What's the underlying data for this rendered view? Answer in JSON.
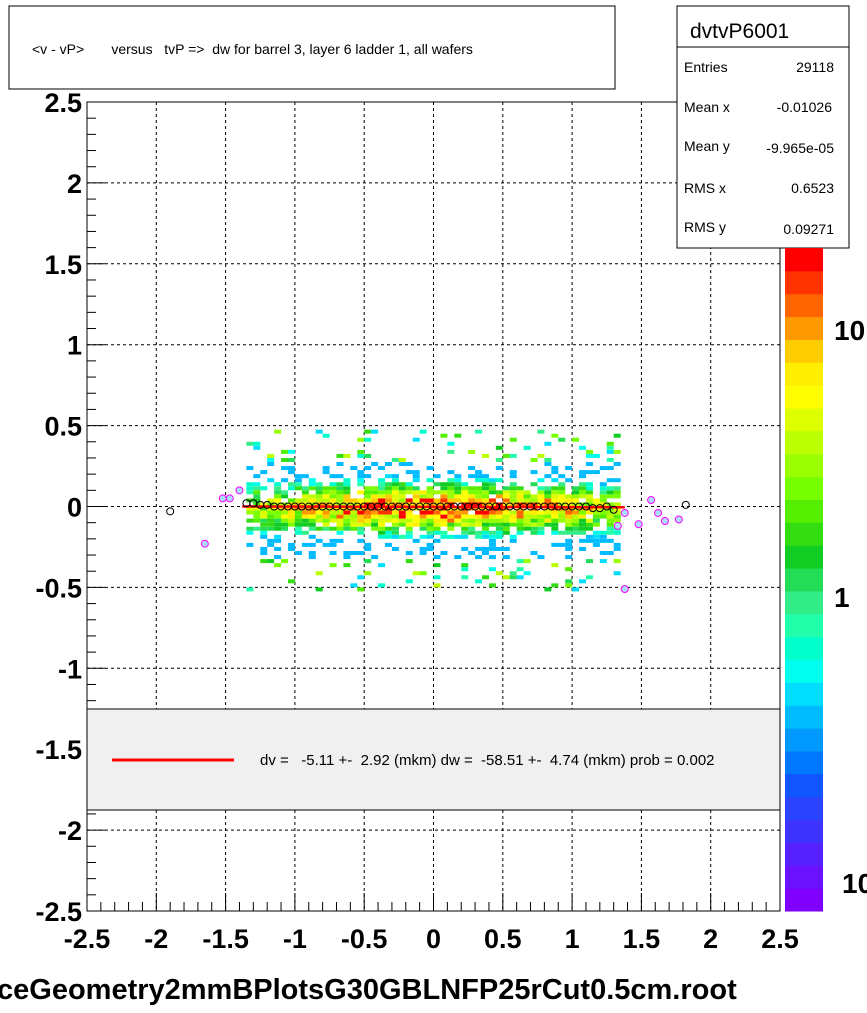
{
  "title": "<v - vP>       versus   tvP =>  dw for barrel 3, layer 6 ladder 1, all wafers",
  "footer": "ceGeometry2mmBPlotsG30GBLNFP25rCut0.5cm.root",
  "stats": {
    "name": "dvtvP6001",
    "rows": [
      {
        "label": "Entries",
        "value": "29118"
      },
      {
        "label": "Mean x",
        "value": "-0.01026"
      },
      {
        "label": "Mean y",
        "value": "-9.965e-05"
      },
      {
        "label": "RMS x",
        "value": "0.6523"
      },
      {
        "label": "RMS y",
        "value": "0.09271"
      }
    ]
  },
  "legend": {
    "text": "dv =   -5.11 +-  2.92 (mkm) dw =  -58.51 +-  4.74 (mkm) prob = 0.002",
    "line_color": "#ff0000"
  },
  "zaxis": {
    "labels": [
      "10",
      "1",
      "10"
    ]
  },
  "chart_data": {
    "type": "heatmap",
    "xlim": [
      -2.5,
      2.5
    ],
    "ylim": [
      -2.5,
      2.5
    ],
    "x_ticks": [
      "-2.5",
      "-2",
      "-1.5",
      "-1",
      "-0.5",
      "0",
      "0.5",
      "1",
      "1.5",
      "2",
      "2.5"
    ],
    "y_ticks": [
      "2.5",
      "2",
      "1.5",
      "1",
      "0.5",
      "0",
      "-0.5",
      "-1",
      "-1.5",
      "-2",
      "-2.5"
    ],
    "grid": true,
    "colorbar_log": true,
    "profile_points": [
      {
        "x": -1.9,
        "y": -0.03
      },
      {
        "x": -1.65,
        "y": -0.23
      },
      {
        "x": -1.52,
        "y": 0.05
      },
      {
        "x": -1.47,
        "y": 0.05
      },
      {
        "x": -1.4,
        "y": 0.1
      },
      {
        "x": -1.35,
        "y": 0.02
      },
      {
        "x": -1.3,
        "y": 0.02
      },
      {
        "x": -1.25,
        "y": 0.01
      },
      {
        "x": -1.2,
        "y": 0.01
      },
      {
        "x": -1.15,
        "y": 0.0
      },
      {
        "x": -1.1,
        "y": 0.0
      },
      {
        "x": -1.05,
        "y": 0.0
      },
      {
        "x": -1.0,
        "y": 0.0
      },
      {
        "x": -0.95,
        "y": 0.0
      },
      {
        "x": -0.9,
        "y": 0.0
      },
      {
        "x": -0.85,
        "y": 0.0
      },
      {
        "x": -0.8,
        "y": 0.0
      },
      {
        "x": -0.75,
        "y": 0.0
      },
      {
        "x": -0.7,
        "y": 0.0
      },
      {
        "x": -0.65,
        "y": 0.0
      },
      {
        "x": -0.6,
        "y": 0.0
      },
      {
        "x": -0.55,
        "y": 0.0
      },
      {
        "x": -0.5,
        "y": 0.0
      },
      {
        "x": -0.45,
        "y": 0.0
      },
      {
        "x": -0.4,
        "y": 0.0
      },
      {
        "x": -0.35,
        "y": 0.0
      },
      {
        "x": -0.3,
        "y": 0.0
      },
      {
        "x": -0.25,
        "y": 0.0
      },
      {
        "x": -0.2,
        "y": 0.0
      },
      {
        "x": -0.15,
        "y": 0.0
      },
      {
        "x": -0.1,
        "y": 0.0
      },
      {
        "x": -0.05,
        "y": 0.0
      },
      {
        "x": 0.0,
        "y": 0.0
      },
      {
        "x": 0.05,
        "y": 0.0
      },
      {
        "x": 0.1,
        "y": 0.0
      },
      {
        "x": 0.15,
        "y": 0.0
      },
      {
        "x": 0.2,
        "y": 0.0
      },
      {
        "x": 0.25,
        "y": 0.0
      },
      {
        "x": 0.3,
        "y": 0.0
      },
      {
        "x": 0.35,
        "y": 0.0
      },
      {
        "x": 0.4,
        "y": 0.0
      },
      {
        "x": 0.45,
        "y": 0.0
      },
      {
        "x": 0.5,
        "y": 0.0
      },
      {
        "x": 0.55,
        "y": 0.0
      },
      {
        "x": 0.6,
        "y": 0.0
      },
      {
        "x": 0.65,
        "y": 0.0
      },
      {
        "x": 0.7,
        "y": 0.0
      },
      {
        "x": 0.75,
        "y": 0.0
      },
      {
        "x": 0.8,
        "y": 0.0
      },
      {
        "x": 0.85,
        "y": 0.0
      },
      {
        "x": 0.9,
        "y": 0.0
      },
      {
        "x": 0.95,
        "y": 0.0
      },
      {
        "x": 1.0,
        "y": 0.0
      },
      {
        "x": 1.05,
        "y": 0.0
      },
      {
        "x": 1.1,
        "y": 0.0
      },
      {
        "x": 1.15,
        "y": -0.01
      },
      {
        "x": 1.2,
        "y": -0.01
      },
      {
        "x": 1.25,
        "y": 0.0
      },
      {
        "x": 1.3,
        "y": -0.02
      },
      {
        "x": 1.33,
        "y": -0.12
      },
      {
        "x": 1.38,
        "y": -0.04
      },
      {
        "x": 1.38,
        "y": -0.51
      },
      {
        "x": 1.48,
        "y": -0.11
      },
      {
        "x": 1.57,
        "y": 0.04
      },
      {
        "x": 1.62,
        "y": -0.04
      },
      {
        "x": 1.67,
        "y": -0.09
      },
      {
        "x": 1.77,
        "y": -0.08
      },
      {
        "x": 1.82,
        "y": 0.01
      }
    ]
  }
}
